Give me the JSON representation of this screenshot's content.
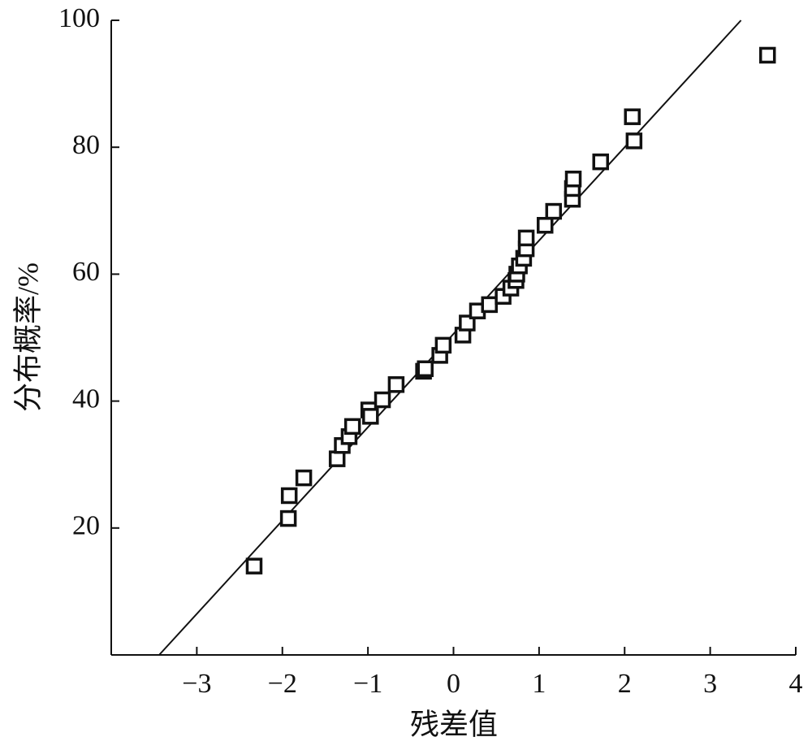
{
  "chart_data": {
    "type": "scatter",
    "x_label": "残差值",
    "y_label": "分布概率/%",
    "xlim": [
      -4,
      4
    ],
    "ylim": [
      0,
      100
    ],
    "xticks": [
      {
        "value": -3,
        "label": "−3"
      },
      {
        "value": -2,
        "label": "−2"
      },
      {
        "value": -1,
        "label": "−1"
      },
      0,
      1,
      2,
      3,
      4
    ],
    "yticks": [
      20,
      40,
      60,
      80,
      100
    ],
    "color": "#111111",
    "x": [
      -2.33,
      -1.93,
      -1.92,
      -1.75,
      -1.36,
      -1.3,
      -1.22,
      -1.18,
      -0.99,
      -0.97,
      -0.83,
      -0.67,
      -0.35,
      -0.33,
      -0.16,
      -0.12,
      0.11,
      0.16,
      0.28,
      0.42,
      0.58,
      0.67,
      0.73,
      0.74,
      0.77,
      0.82,
      0.85,
      0.85,
      1.07,
      1.17,
      1.39,
      1.39,
      1.4,
      1.72,
      2.11,
      2.09,
      3.67
    ],
    "values": [
      14.0,
      21.5,
      25.1,
      27.9,
      30.9,
      33.0,
      34.4,
      36.0,
      38.6,
      37.6,
      40.2,
      42.6,
      44.7,
      45.1,
      47.2,
      48.8,
      50.4,
      52.3,
      54.2,
      55.2,
      56.5,
      57.8,
      59.0,
      60.0,
      61.3,
      62.5,
      64.0,
      65.7,
      67.7,
      69.9,
      71.8,
      73.5,
      75.0,
      77.7,
      81.0,
      84.8,
      94.5
    ],
    "reference_line": {
      "x": [
        -3.44,
        3.36
      ],
      "y": [
        0,
        100
      ]
    }
  }
}
